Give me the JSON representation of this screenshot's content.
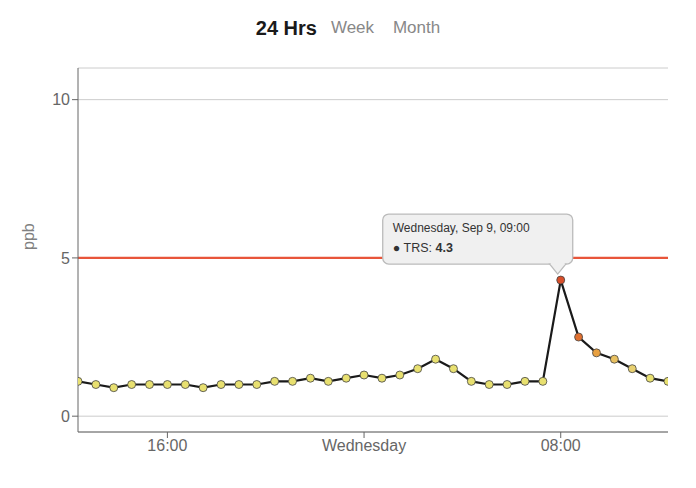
{
  "chart_data": {
    "type": "line",
    "title": "24 Hrs",
    "subtitle": "Week    Month",
    "y_label": "ppb",
    "x": [
      0,
      1,
      2,
      3,
      4,
      5,
      6,
      7,
      8,
      9,
      10,
      11,
      12,
      13,
      14,
      15,
      16,
      17,
      18,
      19,
      20,
      21,
      22,
      23,
      24,
      25,
      26,
      27,
      28,
      29,
      30,
      31,
      32,
      33
    ],
    "values": [
      1.1,
      1.0,
      0.9,
      1.0,
      1.0,
      1.0,
      1.0,
      0.9,
      1.0,
      1.0,
      1.0,
      1.1,
      1.1,
      1.2,
      1.1,
      1.2,
      1.3,
      1.2,
      1.3,
      1.5,
      1.8,
      1.5,
      1.1,
      1.0,
      1.0,
      1.1,
      1.1,
      4.3,
      2.5,
      2.0,
      1.8,
      1.5,
      1.2,
      1.1
    ],
    "color": "#1a1a1a",
    "colors": [
      "#e8e070",
      "#e8e070",
      "#e8e070",
      "#e8e070",
      "#e8e070",
      "#e8e070",
      "#e8e070",
      "#e8e070",
      "#e8e070",
      "#e8e070",
      "#e8e070",
      "#e8e070",
      "#e8e070",
      "#e8e070",
      "#e8e070",
      "#e8e070",
      "#e8e070",
      "#e8e070",
      "#e8e070",
      "#e8e070",
      "#e8e070",
      "#e8e070",
      "#e8e070",
      "#e8e070",
      "#e8e070",
      "#e8e070",
      "#e8e070",
      "#d94f2a",
      "#e07030",
      "#e8a040",
      "#e8c060",
      "#e8d070",
      "#e8e070",
      "#e8e070"
    ],
    "marker": "circle",
    "xlim": [
      0,
      33
    ],
    "ylim": [
      -0.5,
      11
    ],
    "yticks": [
      0,
      5,
      10
    ],
    "xticks": [
      {
        "value": 5,
        "label": "16:00"
      },
      {
        "value": 16,
        "label": "Wednesday"
      },
      {
        "value": 27,
        "label": "08:00"
      }
    ],
    "grid": true,
    "reference_lines": [
      {
        "y": 5.0,
        "color": "#e8553a"
      }
    ],
    "annotations": [
      {
        "x": 27,
        "y": 4.3,
        "title": "Wednesday, Sep 9, 09:00",
        "label": "● TRS:",
        "value": 4.3
      }
    ]
  }
}
